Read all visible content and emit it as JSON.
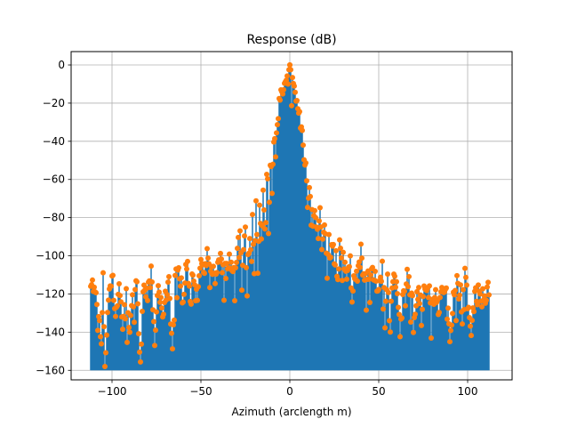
{
  "chart_data": {
    "type": "stem",
    "title": "Response (dB)",
    "xlabel": "Azimuth (arclength m)",
    "ylabel": "",
    "xlim": [
      -123,
      125
    ],
    "ylim": [
      -165,
      7
    ],
    "xticks": [
      -100,
      -50,
      0,
      50,
      100
    ],
    "xtick_labels": [
      "−100",
      "−50",
      "0",
      "50",
      "100"
    ],
    "yticks": [
      0,
      -20,
      -40,
      -60,
      -80,
      -100,
      -120,
      -140,
      -160
    ],
    "ytick_labels": [
      "0",
      "−20",
      "−40",
      "−60",
      "−80",
      "−100",
      "−120",
      "−140",
      "−160"
    ],
    "grid": true,
    "legend": "none",
    "stem_baseline": -160,
    "colors": {
      "stem": "#1f77b4",
      "marker": "#ff7f0e"
    },
    "x_range": [
      -112,
      112
    ],
    "num_points": 449,
    "series": [
      {
        "x": [
          -112,
          -110,
          -108,
          -106,
          -105,
          -104,
          -102,
          -100,
          -98,
          -96,
          -95,
          -94,
          -92,
          -90,
          -88,
          -86,
          -84,
          -83,
          -82,
          -80,
          -78,
          -76,
          -74,
          -72,
          -70,
          -68,
          -66,
          -65,
          -64,
          -62,
          -60,
          -58,
          -56,
          -55,
          -54,
          -52,
          -50,
          -48,
          -46,
          -45,
          -44,
          -42,
          -40,
          -38,
          -36,
          -35,
          -34,
          -32,
          -30,
          -28,
          -27,
          -26,
          -25,
          -24,
          -23,
          -22,
          -21,
          -20,
          -19,
          -18,
          -17,
          -16,
          -15,
          -14,
          -13,
          -12,
          -11,
          -10,
          -9,
          -8,
          -7,
          -6,
          -5,
          -4,
          -3,
          -2,
          -1,
          0,
          1,
          2,
          3,
          4,
          5,
          6,
          7,
          8,
          9,
          10,
          11,
          12,
          13,
          14,
          15,
          16,
          17,
          18,
          19,
          20,
          21,
          22,
          23,
          24,
          25,
          26,
          27,
          28,
          30,
          32,
          34,
          35,
          36,
          38,
          40,
          42,
          44,
          45,
          46,
          48,
          50,
          52,
          54,
          55,
          56,
          58,
          60,
          62,
          64,
          65,
          66,
          68,
          70,
          72,
          74,
          75,
          76,
          78,
          80,
          82,
          84,
          85,
          86,
          88,
          90,
          92,
          94,
          95,
          96,
          97,
          98,
          100,
          102,
          104,
          105,
          106,
          108,
          110,
          112
        ],
        "y": [
          -110,
          -118,
          -125,
          -147,
          -112,
          -157,
          -120,
          -108,
          -130,
          -115,
          -125,
          -135,
          -112,
          -140,
          -118,
          -110,
          -156,
          -125,
          -112,
          -120,
          -108,
          -145,
          -113,
          -130,
          -122,
          -110,
          -150,
          -115,
          -110,
          -105,
          -125,
          -100,
          -120,
          -110,
          -108,
          -125,
          -100,
          -112,
          -96,
          -118,
          -102,
          -113,
          -98,
          -104,
          -108,
          -102,
          -99,
          -110,
          -100,
          -85,
          -113,
          -95,
          -88,
          -117,
          -88,
          -100,
          -78,
          -105,
          -70,
          -110,
          -75,
          -93,
          -66,
          -85,
          -55,
          -65,
          -50,
          -62,
          -35,
          -45,
          -30,
          -20,
          -15,
          -16,
          -12,
          -10,
          -5,
          0,
          -5,
          -12,
          -14,
          -20,
          -22,
          -30,
          -34,
          -50,
          -47,
          -75,
          -60,
          -68,
          -80,
          -72,
          -85,
          -90,
          -75,
          -100,
          -85,
          -88,
          -108,
          -92,
          -100,
          -90,
          -105,
          -97,
          -113,
          -95,
          -100,
          -107,
          -103,
          -128,
          -105,
          -110,
          -97,
          -112,
          -106,
          -120,
          -108,
          -112,
          -115,
          -105,
          -125,
          -112,
          -128,
          -110,
          -113,
          -140,
          -118,
          -125,
          -108,
          -117,
          -130,
          -112,
          -123,
          -122,
          -117,
          -113,
          -125,
          -115,
          -130,
          -120,
          -115,
          -119,
          -143,
          -118,
          -110,
          -124,
          -113,
          -130,
          -107,
          -120,
          -143,
          -113,
          -122,
          -118,
          -110,
          -125,
          -115
        ]
      }
    ]
  }
}
